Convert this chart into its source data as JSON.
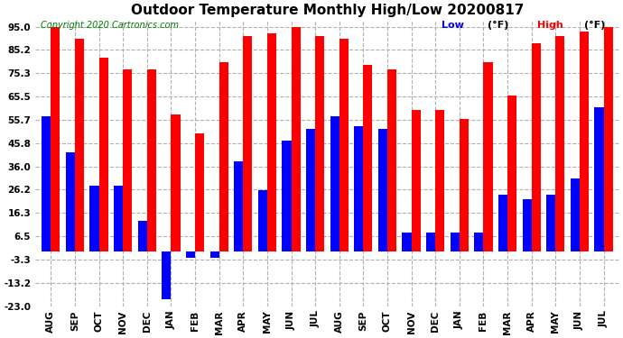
{
  "title": "Outdoor Temperature Monthly High/Low 20200817",
  "copyright": "Copyright 2020 Cartronics.com",
  "legend_low": "Low",
  "legend_high": "High",
  "legend_unit": "(°F)",
  "ytick_labels": [
    "95.0",
    "85.2",
    "75.3",
    "65.5",
    "55.7",
    "45.8",
    "36.0",
    "26.2",
    "16.3",
    "6.5",
    "-3.3",
    "-13.2",
    "-23.0"
  ],
  "ytick_vals": [
    95.0,
    85.2,
    75.3,
    65.5,
    55.7,
    45.8,
    36.0,
    26.2,
    16.3,
    6.5,
    -3.3,
    -13.2,
    -23.0
  ],
  "ylim": [
    -23.0,
    98.0
  ],
  "months": [
    "AUG",
    "SEP",
    "OCT",
    "NOV",
    "DEC",
    "JAN",
    "FEB",
    "MAR",
    "APR",
    "MAY",
    "JUN",
    "JUL",
    "AUG",
    "SEP",
    "OCT",
    "NOV",
    "DEC",
    "JAN",
    "FEB",
    "MAR",
    "APR",
    "MAY",
    "JUN",
    "JUL"
  ],
  "high_vals": [
    95.0,
    90.0,
    82.0,
    77.0,
    77.0,
    58.0,
    50.0,
    80.0,
    91.0,
    92.0,
    95.0,
    91.0,
    90.0,
    79.0,
    77.0,
    60.0,
    60.0,
    56.0,
    80.0,
    66.0,
    88.0,
    91.0,
    93.0,
    95.0
  ],
  "low_vals": [
    57.0,
    42.0,
    28.0,
    28.0,
    13.0,
    -20.0,
    -2.5,
    -2.5,
    38.0,
    26.0,
    47.0,
    52.0,
    57.0,
    53.0,
    52.0,
    8.0,
    8.0,
    8.0,
    8.0,
    24.0,
    22.0,
    24.0,
    31.0,
    61.0
  ],
  "high_color": "#ff0000",
  "low_color": "#0000ff",
  "grid_color": "#b0b0b0",
  "bg_color": "#ffffff",
  "title_fontsize": 11,
  "axis_fontsize": 7.5,
  "copyright_fontsize": 7,
  "legend_fontsize": 8
}
